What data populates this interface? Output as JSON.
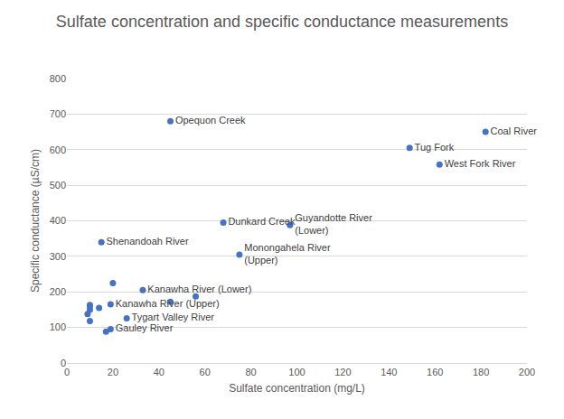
{
  "chart_data": {
    "type": "scatter",
    "title": "Sulfate concentration and specific conductance measurements",
    "x_label": "Sulfate concentration (mg/L)",
    "y_label": "Specific conductance (µS/cm)",
    "x": [
      45,
      182,
      149,
      162,
      68,
      97,
      15,
      75,
      20,
      33,
      56,
      45,
      19,
      26,
      19,
      17,
      10,
      10,
      10,
      9,
      10,
      14
    ],
    "values": [
      680,
      650,
      605,
      558,
      395,
      388,
      340,
      305,
      225,
      205,
      187,
      172,
      165,
      126,
      95,
      88,
      163,
      160,
      150,
      138,
      118,
      155
    ],
    "labels": [
      "Opequon Creek",
      "Coal River",
      "Tug Fork",
      "West Fork River",
      "Dunkard Creek",
      "Guyandotte River\n(Lower)",
      "Shenandoah River",
      "Monongahela River\n(Upper)",
      null,
      "Kanawha River (Lower)",
      null,
      null,
      "Kanawha River (Upper)",
      "Tygart Valley River",
      "Gauley River",
      null,
      null,
      null,
      null,
      null,
      null,
      null
    ],
    "color": "#4472c4",
    "marker": "circle",
    "xlim": [
      0,
      200
    ],
    "xticks": [
      0,
      20,
      40,
      60,
      80,
      100,
      120,
      140,
      160,
      180,
      200
    ],
    "ylim": [
      0,
      800
    ],
    "yticks": [
      0,
      100,
      200,
      300,
      400,
      500,
      600,
      700,
      800
    ],
    "grid": "y",
    "data_labels": true
  }
}
